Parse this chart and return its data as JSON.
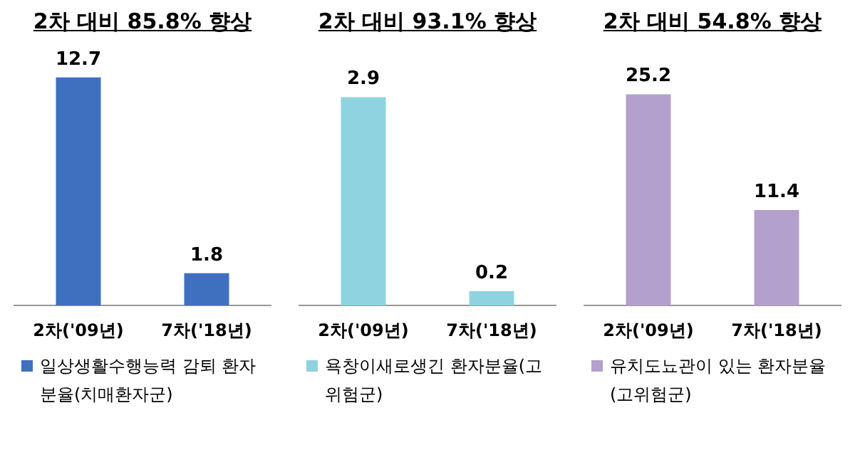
{
  "chart_data": [
    {
      "type": "bar",
      "title": "2차 대비 85.8% 향상",
      "categories": [
        "2차('09년)",
        "7차('18년)"
      ],
      "series": [
        {
          "name": "일상생활수행능력 감퇴 환자분율(치매환자군)",
          "color": "#3f6fbf",
          "values": [
            12.7,
            1.8
          ]
        }
      ],
      "data_labels": true,
      "legend": "bottom"
    },
    {
      "type": "bar",
      "title": "2차 대비 93.1% 향상",
      "categories": [
        "2차('09년)",
        "7차('18년)"
      ],
      "series": [
        {
          "name": "욕창이새로생긴 환자분율(고위험군)",
          "color": "#8fd3e0",
          "values": [
            2.9,
            0.2
          ]
        }
      ],
      "data_labels": true,
      "legend": "bottom"
    },
    {
      "type": "bar",
      "title": "2차 대비 54.8% 향상",
      "categories": [
        "2차('09년)",
        "7차('18년)"
      ],
      "series": [
        {
          "name": "유치도뇨관이 있는 환자분율(고위험군)",
          "color": "#b4a0cc",
          "values": [
            25.2,
            11.4
          ]
        }
      ],
      "data_labels": true,
      "legend": "bottom"
    }
  ]
}
